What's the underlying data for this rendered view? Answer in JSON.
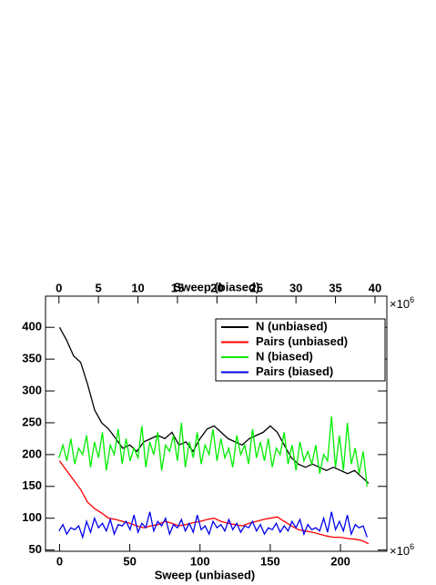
{
  "chart_data": {
    "type": "line",
    "xlabel": "Sweep (unbiased)",
    "x2label": "Sweep (biased)",
    "xexponent": {
      "base": "×10",
      "power": "6"
    },
    "x2exponent": {
      "base": "×10",
      "power": "6"
    },
    "xlim": [
      -10,
      233
    ],
    "xticks": [
      0,
      50,
      100,
      150,
      200
    ],
    "x2lim": [
      -1.7,
      41.5
    ],
    "x2ticks": [
      0,
      5,
      10,
      15,
      20,
      25,
      30,
      35,
      40
    ],
    "ylim": [
      48,
      449
    ],
    "yticks": [
      50,
      100,
      150,
      200,
      250,
      300,
      350,
      400
    ],
    "legend": "upper right",
    "series": [
      {
        "name": "N (unbiased)",
        "color": "#000000",
        "axis": "x",
        "x": [
          0,
          5,
          10,
          15,
          20,
          25,
          30,
          35,
          40,
          45,
          50,
          55,
          60,
          65,
          70,
          75,
          80,
          85,
          90,
          95,
          100,
          105,
          110,
          115,
          120,
          125,
          130,
          135,
          140,
          145,
          150,
          155,
          160,
          165,
          170,
          175,
          180,
          185,
          190,
          195,
          200,
          205,
          210,
          215,
          220
        ],
        "values": [
          400,
          380,
          355,
          345,
          310,
          270,
          250,
          240,
          225,
          210,
          215,
          205,
          220,
          225,
          230,
          225,
          235,
          215,
          220,
          205,
          225,
          240,
          245,
          235,
          225,
          220,
          215,
          225,
          230,
          235,
          245,
          235,
          215,
          195,
          185,
          180,
          185,
          180,
          175,
          180,
          175,
          170,
          175,
          165,
          155
        ]
      },
      {
        "name": "Pairs (unbiased)",
        "color": "#ff0000",
        "axis": "x",
        "x": [
          0,
          5,
          10,
          15,
          20,
          25,
          30,
          35,
          40,
          45,
          50,
          55,
          60,
          65,
          70,
          75,
          80,
          85,
          90,
          95,
          100,
          105,
          110,
          115,
          120,
          125,
          130,
          135,
          140,
          145,
          150,
          155,
          160,
          165,
          170,
          175,
          180,
          185,
          190,
          195,
          200,
          205,
          210,
          215,
          220
        ],
        "values": [
          190,
          175,
          160,
          145,
          125,
          115,
          108,
          100,
          98,
          95,
          92,
          88,
          85,
          88,
          90,
          95,
          92,
          88,
          90,
          93,
          95,
          98,
          100,
          95,
          92,
          90,
          88,
          92,
          95,
          98,
          100,
          102,
          95,
          88,
          82,
          80,
          78,
          75,
          72,
          70,
          70,
          68,
          67,
          65,
          60
        ]
      },
      {
        "name": "N (biased)",
        "color": "#00ee00",
        "axis": "x2",
        "x": [
          0,
          0.5,
          1,
          1.5,
          2,
          2.5,
          3,
          3.5,
          4,
          4.5,
          5,
          5.5,
          6,
          6.5,
          7,
          7.5,
          8,
          8.5,
          9,
          9.5,
          10,
          10.5,
          11,
          11.5,
          12,
          12.5,
          13,
          13.5,
          14,
          14.5,
          15,
          15.5,
          16,
          16.5,
          17,
          17.5,
          18,
          18.5,
          19,
          19.5,
          20,
          20.5,
          21,
          21.5,
          22,
          22.5,
          23,
          23.5,
          24,
          24.5,
          25,
          25.5,
          26,
          26.5,
          27,
          27.5,
          28,
          28.5,
          29,
          29.5,
          30,
          30.5,
          31,
          31.5,
          32,
          32.5,
          33,
          33.5,
          34,
          34.5,
          35,
          35.5,
          36,
          36.5,
          37,
          37.5,
          38,
          38.5,
          39
        ],
        "values": [
          195,
          215,
          190,
          225,
          185,
          210,
          200,
          230,
          180,
          220,
          195,
          235,
          175,
          215,
          200,
          240,
          185,
          225,
          190,
          210,
          195,
          245,
          180,
          220,
          200,
          235,
          175,
          215,
          205,
          230,
          190,
          250,
          180,
          220,
          195,
          235,
          185,
          215,
          200,
          240,
          190,
          225,
          195,
          210,
          180,
          230,
          200,
          215,
          185,
          240,
          195,
          220,
          190,
          225,
          180,
          210,
          200,
          235,
          185,
          215,
          175,
          220,
          190,
          205,
          185,
          215,
          170,
          200,
          190,
          260,
          180,
          230,
          175,
          250,
          185,
          210,
          170,
          205,
          150
        ]
      },
      {
        "name": "Pairs (biased)",
        "color": "#0000ee",
        "axis": "x2",
        "x": [
          0,
          0.5,
          1,
          1.5,
          2,
          2.5,
          3,
          3.5,
          4,
          4.5,
          5,
          5.5,
          6,
          6.5,
          7,
          7.5,
          8,
          8.5,
          9,
          9.5,
          10,
          10.5,
          11,
          11.5,
          12,
          12.5,
          13,
          13.5,
          14,
          14.5,
          15,
          15.5,
          16,
          16.5,
          17,
          17.5,
          18,
          18.5,
          19,
          19.5,
          20,
          20.5,
          21,
          21.5,
          22,
          22.5,
          23,
          23.5,
          24,
          24.5,
          25,
          25.5,
          26,
          26.5,
          27,
          27.5,
          28,
          28.5,
          29,
          29.5,
          30,
          30.5,
          31,
          31.5,
          32,
          32.5,
          33,
          33.5,
          34,
          34.5,
          35,
          35.5,
          36,
          36.5,
          37,
          37.5,
          38,
          38.5,
          39
        ],
        "values": [
          80,
          90,
          75,
          85,
          82,
          88,
          70,
          95,
          78,
          100,
          85,
          92,
          80,
          98,
          75,
          90,
          88,
          95,
          82,
          105,
          78,
          92,
          85,
          110,
          80,
          95,
          88,
          100,
          75,
          90,
          85,
          98,
          80,
          92,
          78,
          105,
          82,
          88,
          75,
          95,
          85,
          90,
          80,
          98,
          82,
          92,
          78,
          88,
          85,
          95,
          80,
          90,
          75,
          85,
          82,
          92,
          78,
          88,
          80,
          95,
          85,
          98,
          75,
          90,
          82,
          85,
          80,
          100,
          78,
          110,
          82,
          95,
          80,
          105,
          75,
          90,
          85,
          88,
          70
        ]
      }
    ]
  }
}
